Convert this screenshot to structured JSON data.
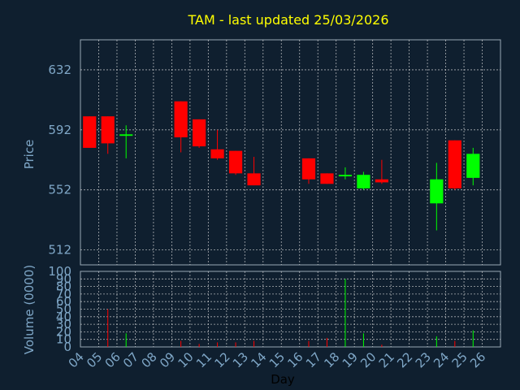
{
  "chart_data": [
    {
      "type": "candlestick",
      "title": "TAM - last updated 25/03/2026",
      "ylabel": "Price",
      "ylim": [
        502,
        652
      ],
      "yticks": [
        512,
        552,
        592,
        632
      ],
      "days": [
        "04",
        "05",
        "06",
        "07",
        "08",
        "09",
        "10",
        "11",
        "12",
        "13",
        "14",
        "15",
        "16",
        "17",
        "18",
        "19",
        "20",
        "21",
        "22",
        "23",
        "24",
        "25",
        "26"
      ],
      "colors": {
        "up": "#00ff00",
        "down": "#ff0000",
        "background": "#0f1f2f"
      },
      "candles": [
        {
          "day": "04",
          "open": 601,
          "high": 601,
          "low": 580,
          "close": 580
        },
        {
          "day": "05",
          "open": 601,
          "high": 601,
          "low": 576,
          "close": 583
        },
        {
          "day": "06",
          "open": 588,
          "high": 595,
          "low": 573,
          "close": 589
        },
        {
          "day": "09",
          "open": 611,
          "high": 611,
          "low": 577,
          "close": 587
        },
        {
          "day": "10",
          "open": 599,
          "high": 599,
          "low": 580,
          "close": 581
        },
        {
          "day": "11",
          "open": 579,
          "high": 592,
          "low": 572,
          "close": 573
        },
        {
          "day": "12",
          "open": 578,
          "high": 578,
          "low": 562,
          "close": 563
        },
        {
          "day": "13",
          "open": 563,
          "high": 574,
          "low": 555,
          "close": 555
        },
        {
          "day": "16",
          "open": 573,
          "high": 573,
          "low": 556,
          "close": 559
        },
        {
          "day": "17",
          "open": 563,
          "high": 563,
          "low": 556,
          "close": 556
        },
        {
          "day": "18",
          "open": 561,
          "high": 567,
          "low": 559,
          "close": 562
        },
        {
          "day": "19",
          "open": 553,
          "high": 564,
          "low": 552,
          "close": 562
        },
        {
          "day": "20",
          "open": 559,
          "high": 572,
          "low": 556,
          "close": 557
        },
        {
          "day": "23",
          "open": 543,
          "high": 570,
          "low": 525,
          "close": 559
        },
        {
          "day": "24",
          "open": 585,
          "high": 585,
          "low": 552,
          "close": 553
        },
        {
          "day": "25",
          "open": 560,
          "high": 580,
          "low": 555,
          "close": 576
        }
      ]
    },
    {
      "type": "bar",
      "ylabel": "Volume (0000)",
      "ylim": [
        0,
        100
      ],
      "yticks": [
        0,
        10,
        20,
        30,
        40,
        50,
        60,
        70,
        80,
        90,
        100
      ],
      "xlabel": "Day",
      "bars": [
        {
          "day": "05",
          "value": 50,
          "dir": "down"
        },
        {
          "day": "06",
          "value": 18,
          "dir": "up"
        },
        {
          "day": "09",
          "value": 8,
          "dir": "down"
        },
        {
          "day": "10",
          "value": 4,
          "dir": "down"
        },
        {
          "day": "11",
          "value": 6,
          "dir": "down"
        },
        {
          "day": "12",
          "value": 6,
          "dir": "down"
        },
        {
          "day": "13",
          "value": 8,
          "dir": "down"
        },
        {
          "day": "16",
          "value": 8,
          "dir": "down"
        },
        {
          "day": "17",
          "value": 12,
          "dir": "down"
        },
        {
          "day": "18",
          "value": 90,
          "dir": "up"
        },
        {
          "day": "19",
          "value": 18,
          "dir": "up"
        },
        {
          "day": "20",
          "value": 3,
          "dir": "down"
        },
        {
          "day": "23",
          "value": 14,
          "dir": "up"
        },
        {
          "day": "24",
          "value": 8,
          "dir": "down"
        },
        {
          "day": "25",
          "value": 22,
          "dir": "up"
        }
      ]
    }
  ]
}
